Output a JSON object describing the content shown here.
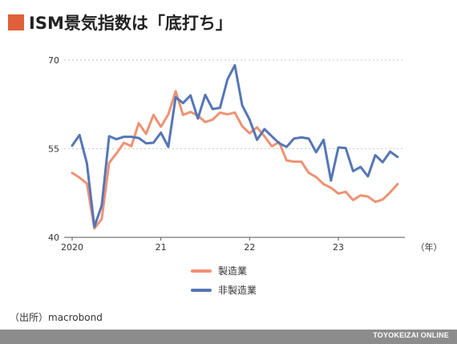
{
  "title": "ISM景気指数は「底打ち」",
  "source": "（出所）macrobond",
  "footer": "TOYOKEIZAI ONLINE",
  "colors": {
    "accent": "#e0603a",
    "manufacturing": "#ee9274",
    "non_manufacturing": "#5576b5"
  },
  "chart_data": {
    "type": "line",
    "title": "ISM景気指数は「底打ち」",
    "xlabel": "（年）",
    "ylabel": "",
    "ylim": [
      40,
      72
    ],
    "yticks": [
      40,
      55,
      70
    ],
    "xlim": [
      "2020-01",
      "2023-10"
    ],
    "xticks": [
      {
        "label": "2020",
        "x": "2020-01"
      },
      {
        "label": "21",
        "x": "2021-01"
      },
      {
        "label": "22",
        "x": "2022-01"
      },
      {
        "label": "23",
        "x": "2023-01"
      }
    ],
    "grid": true,
    "legend_position": "bottom",
    "x": [
      "2020-01",
      "2020-02",
      "2020-03",
      "2020-04",
      "2020-05",
      "2020-06",
      "2020-07",
      "2020-08",
      "2020-09",
      "2020-10",
      "2020-11",
      "2020-12",
      "2021-01",
      "2021-02",
      "2021-03",
      "2021-04",
      "2021-05",
      "2021-06",
      "2021-07",
      "2021-08",
      "2021-09",
      "2021-10",
      "2021-11",
      "2021-12",
      "2022-01",
      "2022-02",
      "2022-03",
      "2022-04",
      "2022-05",
      "2022-06",
      "2022-07",
      "2022-08",
      "2022-09",
      "2022-10",
      "2022-11",
      "2022-12",
      "2023-01",
      "2023-02",
      "2023-03",
      "2023-04",
      "2023-05",
      "2023-06",
      "2023-07",
      "2023-08",
      "2023-09"
    ],
    "series": [
      {
        "name": "製造業",
        "color": "#ee9274",
        "values": [
          50.9,
          50.1,
          49.1,
          41.5,
          43.1,
          52.6,
          54.2,
          56.0,
          55.4,
          59.3,
          57.5,
          60.7,
          58.7,
          60.8,
          64.7,
          60.7,
          61.2,
          60.6,
          59.5,
          59.9,
          61.1,
          60.8,
          61.1,
          58.8,
          57.6,
          58.6,
          57.1,
          55.4,
          56.1,
          53.0,
          52.8,
          52.8,
          50.9,
          50.2,
          49.0,
          48.4,
          47.4,
          47.7,
          46.3,
          47.1,
          46.9,
          46.0,
          46.4,
          47.6,
          49.0
        ]
      },
      {
        "name": "非製造業",
        "color": "#5576b5",
        "values": [
          55.5,
          57.3,
          52.5,
          41.8,
          45.4,
          57.1,
          56.6,
          57.0,
          57.0,
          56.8,
          55.9,
          56.0,
          57.7,
          55.3,
          63.7,
          62.7,
          64.0,
          60.1,
          64.1,
          61.7,
          61.9,
          66.7,
          69.1,
          62.3,
          59.9,
          56.5,
          58.3,
          57.1,
          55.9,
          55.3,
          56.7,
          56.9,
          56.7,
          54.4,
          56.5,
          49.6,
          55.2,
          55.1,
          51.2,
          51.9,
          50.3,
          53.9,
          52.7,
          54.5,
          53.6
        ]
      }
    ]
  }
}
